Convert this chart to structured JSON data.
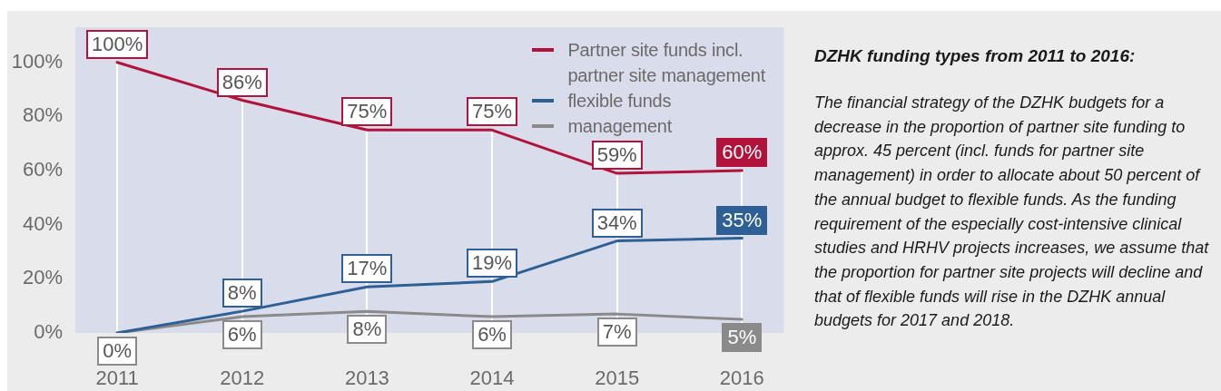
{
  "chart_data": {
    "type": "line",
    "title": "DZHK funding types from 2011 to 2016:",
    "annotations": [
      "The financial strategy of the DZHK budgets for a decrease in the proportion of partner site funding to approx. 45 percent (incl. funds for partner site management) in order to allocate about 50 percent of the annual budget to flexible funds. As the funding requirement of the especially cost-intensive clinical studies and HRHV projects increases, we assume that the proportion for partner site projects will decline and that of flexible funds will rise in the DZHK annual budgets for 2017 and 2018."
    ],
    "categories": [
      "2011",
      "2012",
      "2013",
      "2014",
      "2015",
      "2016"
    ],
    "series": [
      {
        "name": "Partner site funds incl. partner site management",
        "color": "#b2133b",
        "values": [
          100,
          86,
          75,
          75,
          59,
          60
        ],
        "value_labels": [
          "100%",
          "86%",
          "75%",
          "75%",
          "59%",
          "60%"
        ]
      },
      {
        "name": "flexible funds",
        "color": "#2e6096",
        "values": [
          0,
          8,
          17,
          19,
          34,
          35
        ],
        "value_labels": [
          null,
          "8%",
          "17%",
          "19%",
          "34%",
          "35%"
        ]
      },
      {
        "name": "management",
        "color": "#8a8a8a",
        "values": [
          0,
          6,
          8,
          6,
          7,
          5
        ],
        "value_labels": [
          "0%",
          "6%",
          "8%",
          "6%",
          "7%",
          "5%"
        ]
      }
    ],
    "ylim": [
      0,
      113
    ],
    "yticks": [
      {
        "value": 0,
        "label": "0%"
      },
      {
        "value": 20,
        "label": "20%"
      },
      {
        "value": 40,
        "label": "40%"
      },
      {
        "value": 60,
        "label": "60%"
      },
      {
        "value": 80,
        "label": "80%"
      },
      {
        "value": 100,
        "label": "100%"
      }
    ],
    "grid": "x",
    "legend": "top right",
    "marker": "none",
    "line_style": "solid"
  }
}
